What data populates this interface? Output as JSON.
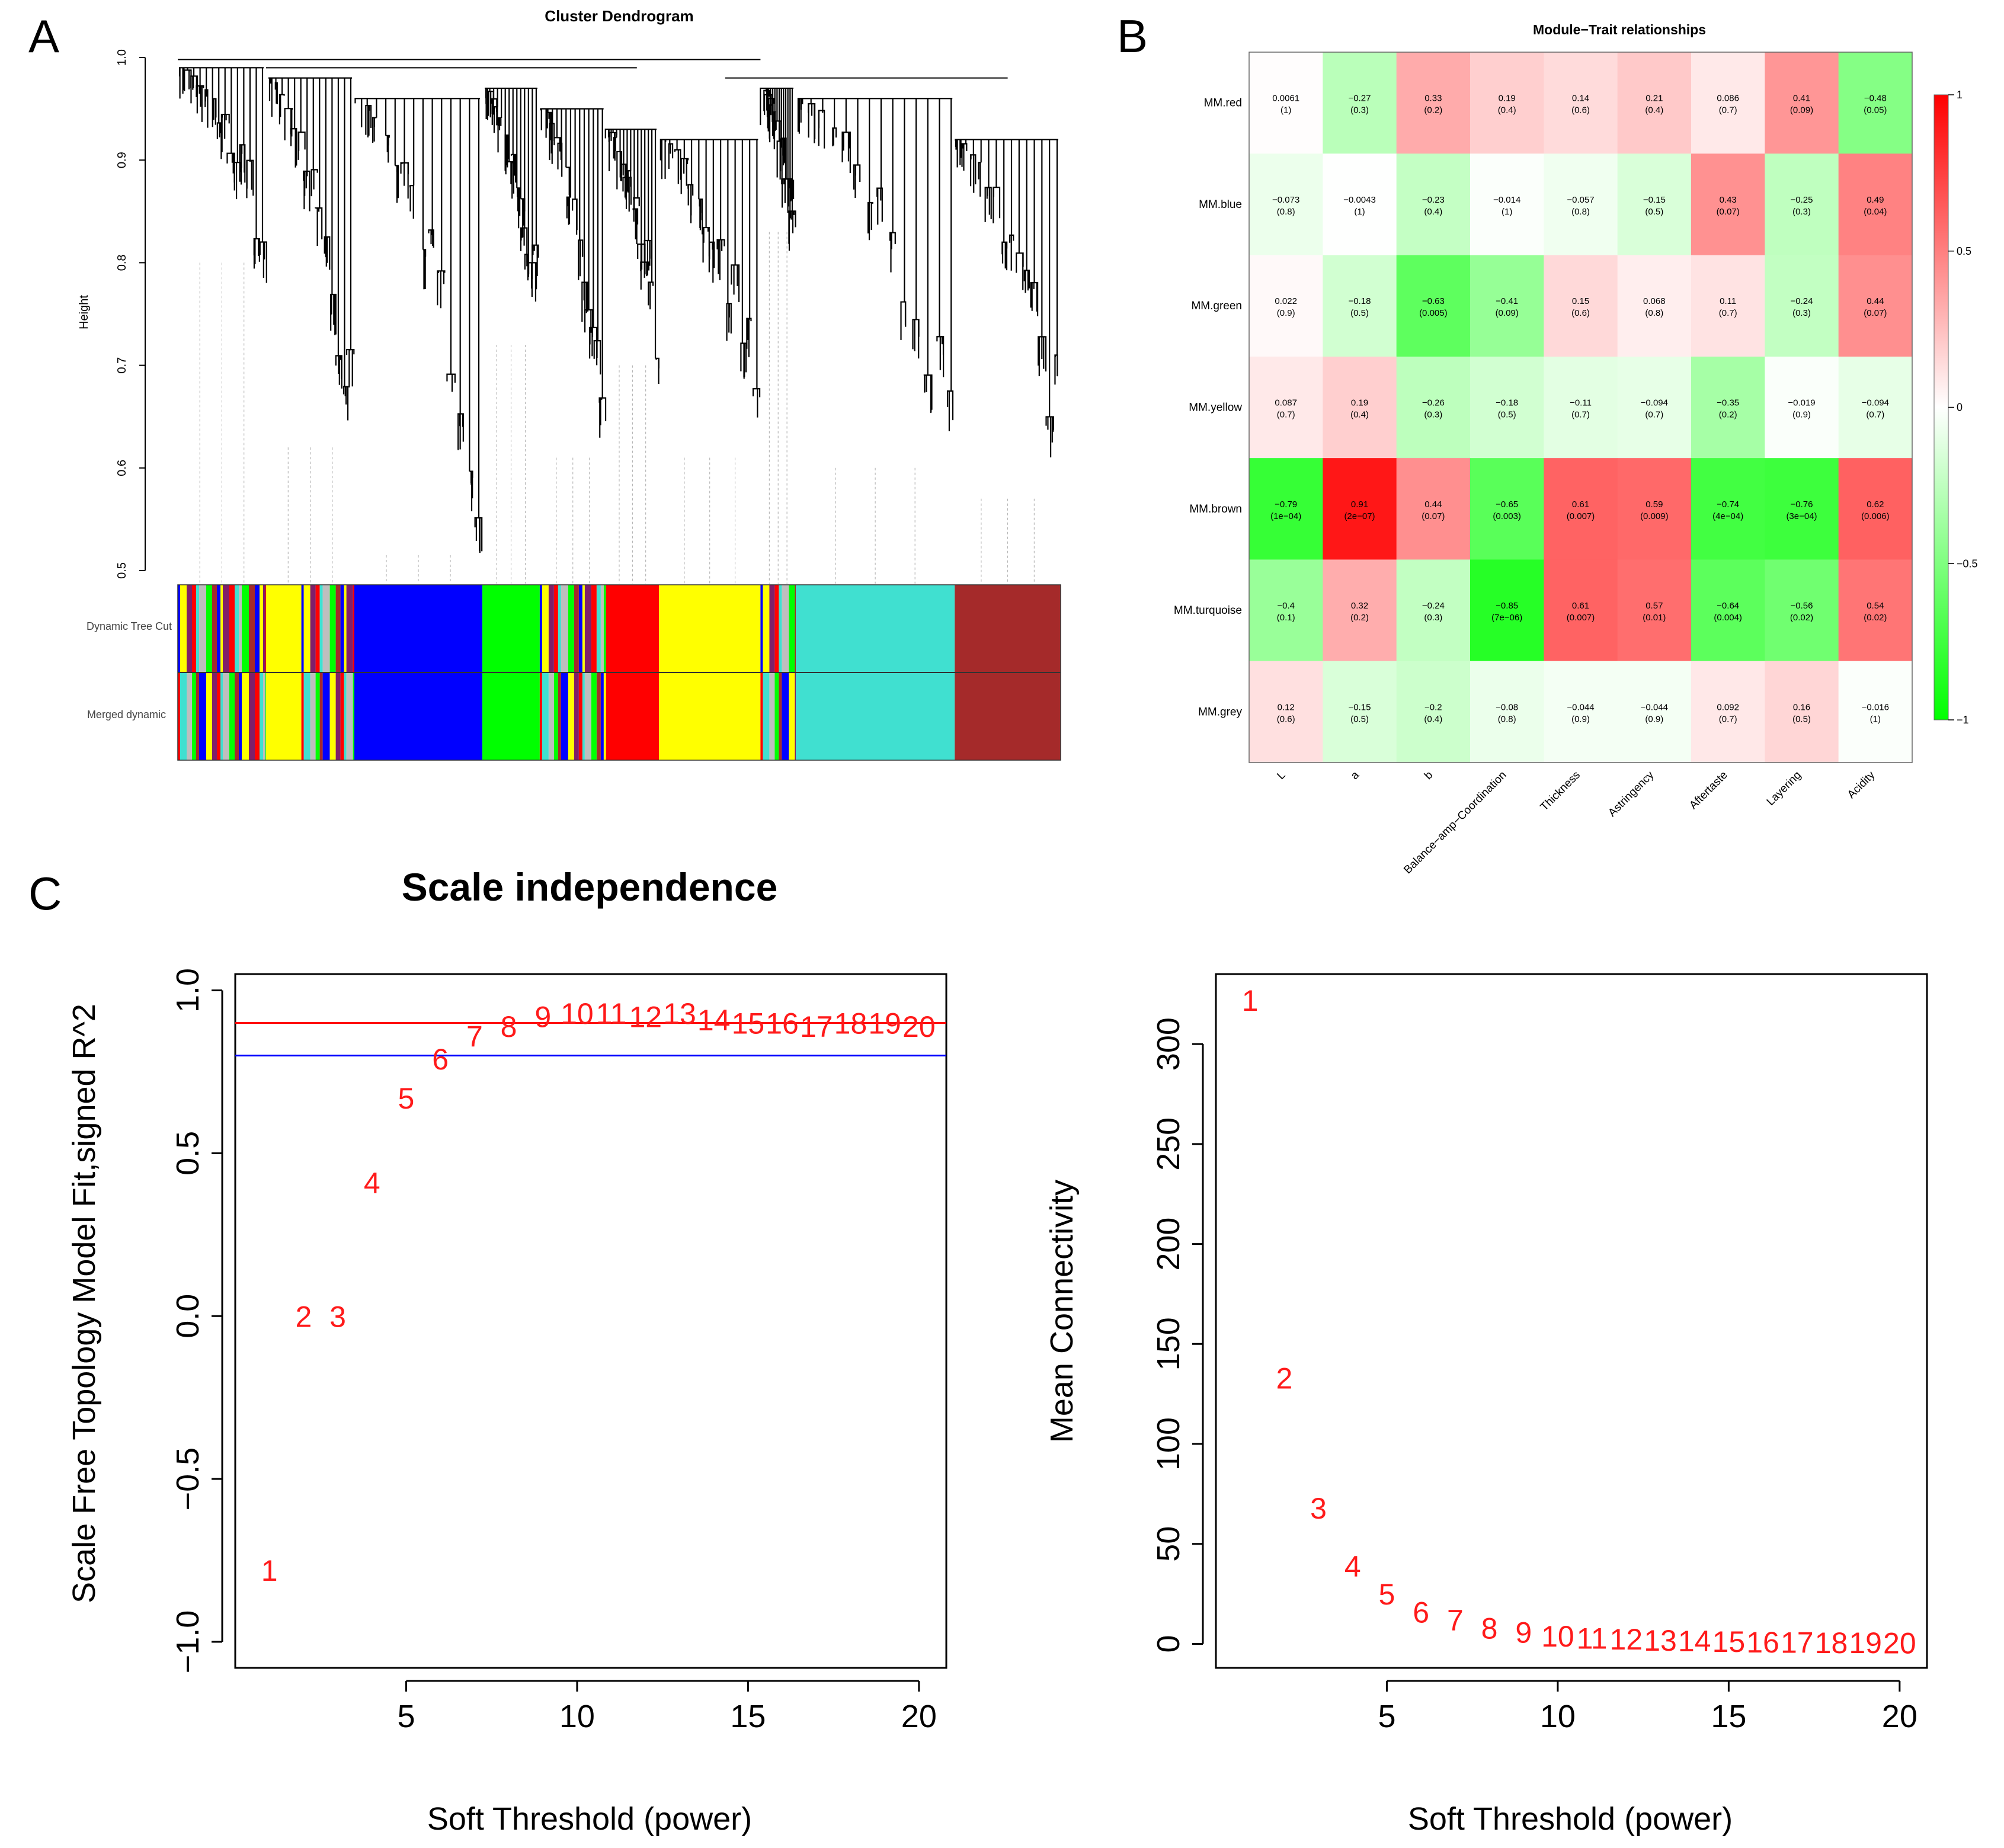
{
  "panels": {
    "a": "A",
    "b": "B",
    "c": "C"
  },
  "colors": {
    "red_points": "#ff1a1a",
    "hline_red": "#ff0000",
    "hline_blue": "#0000ff",
    "module_blue": "#0000ff",
    "module_green": "#00ff00",
    "module_red": "#ff0000",
    "module_yellow": "#ffff00",
    "module_turquoise": "#40e0d0",
    "module_brown": "#a52a2a",
    "module_grey": "#bebebe"
  },
  "chart_data": [
    {
      "id": "dendrogram",
      "type": "dendrogram",
      "title": "Cluster Dendrogram",
      "ylabel": "Height",
      "yticks": [
        "0.5",
        "0.6",
        "0.7",
        "0.8",
        "0.9",
        "1.0"
      ],
      "ylim": [
        0.5,
        1.0
      ],
      "row_labels": [
        "Dynamic Tree Cut",
        "Merged dynamic"
      ],
      "module_strip": [
        {
          "color": "mixed",
          "start": 0.0,
          "end": 0.1
        },
        {
          "color": "yellow",
          "start": 0.1,
          "end": 0.14
        },
        {
          "color": "mixed",
          "start": 0.14,
          "end": 0.2
        },
        {
          "color": "blue",
          "start": 0.2,
          "end": 0.345
        },
        {
          "color": "green",
          "start": 0.345,
          "end": 0.41
        },
        {
          "color": "mixed",
          "start": 0.41,
          "end": 0.485
        },
        {
          "color": "red",
          "start": 0.485,
          "end": 0.545
        },
        {
          "color": "yellow",
          "start": 0.545,
          "end": 0.66
        },
        {
          "color": "mixed",
          "start": 0.66,
          "end": 0.7
        },
        {
          "color": "turquoise",
          "start": 0.7,
          "end": 0.88
        },
        {
          "color": "brown",
          "start": 0.88,
          "end": 1.0
        }
      ]
    },
    {
      "id": "heatmap",
      "type": "heatmap",
      "title": "Module−Trait relationships",
      "rows": [
        "MM.red",
        "MM.blue",
        "MM.green",
        "MM.yellow",
        "MM.brown",
        "MM.turquoise",
        "MM.grey"
      ],
      "cols": [
        "L",
        "a",
        "b",
        "Balance−amp−Coordination",
        "Thickness",
        "Astringency",
        "Aftertaste",
        "Layering",
        "Acidity"
      ],
      "values": [
        [
          0.0061,
          -0.27,
          0.33,
          0.19,
          0.14,
          0.21,
          0.086,
          0.41,
          -0.48
        ],
        [
          -0.073,
          -0.0043,
          -0.23,
          -0.014,
          -0.057,
          -0.15,
          0.43,
          -0.25,
          0.49
        ],
        [
          0.022,
          -0.18,
          -0.63,
          -0.41,
          0.15,
          0.068,
          0.11,
          -0.24,
          0.44
        ],
        [
          0.087,
          0.19,
          -0.26,
          -0.18,
          -0.11,
          -0.094,
          -0.35,
          -0.019,
          -0.094
        ],
        [
          -0.79,
          0.91,
          0.44,
          -0.65,
          0.61,
          0.59,
          -0.74,
          -0.76,
          0.62
        ],
        [
          -0.4,
          0.32,
          -0.24,
          -0.85,
          0.61,
          0.57,
          -0.64,
          -0.56,
          0.54
        ],
        [
          0.12,
          -0.15,
          -0.2,
          -0.08,
          -0.044,
          -0.044,
          0.092,
          0.16,
          -0.016
        ]
      ],
      "labels": [
        [
          "0.0061",
          "−0.27",
          "0.33",
          "0.19",
          "0.14",
          "0.21",
          "0.086",
          "0.41",
          "−0.48"
        ],
        [
          "−0.073",
          "−0.0043",
          "−0.23",
          "−0.014",
          "−0.057",
          "−0.15",
          "0.43",
          "−0.25",
          "0.49"
        ],
        [
          "0.022",
          "−0.18",
          "−0.63",
          "−0.41",
          "0.15",
          "0.068",
          "0.11",
          "−0.24",
          "0.44"
        ],
        [
          "0.087",
          "0.19",
          "−0.26",
          "−0.18",
          "−0.11",
          "−0.094",
          "−0.35",
          "−0.019",
          "−0.094"
        ],
        [
          "−0.79",
          "0.91",
          "0.44",
          "−0.65",
          "0.61",
          "0.59",
          "−0.74",
          "−0.76",
          "0.62"
        ],
        [
          "−0.4",
          "0.32",
          "−0.24",
          "−0.85",
          "0.61",
          "0.57",
          "−0.64",
          "−0.56",
          "0.54"
        ],
        [
          "0.12",
          "−0.15",
          "−0.2",
          "−0.08",
          "−0.044",
          "−0.044",
          "0.092",
          "0.16",
          "−0.016"
        ]
      ],
      "pvalues": [
        [
          "(1)",
          "(0.3)",
          "(0.2)",
          "(0.4)",
          "(0.6)",
          "(0.4)",
          "(0.7)",
          "(0.09)",
          "(0.05)"
        ],
        [
          "(0.8)",
          "(1)",
          "(0.4)",
          "(1)",
          "(0.8)",
          "(0.5)",
          "(0.07)",
          "(0.3)",
          "(0.04)"
        ],
        [
          "(0.9)",
          "(0.5)",
          "(0.005)",
          "(0.09)",
          "(0.6)",
          "(0.8)",
          "(0.7)",
          "(0.3)",
          "(0.07)"
        ],
        [
          "(0.7)",
          "(0.4)",
          "(0.3)",
          "(0.5)",
          "(0.7)",
          "(0.7)",
          "(0.2)",
          "(0.9)",
          "(0.7)"
        ],
        [
          "(1e−04)",
          "(2e−07)",
          "(0.07)",
          "(0.003)",
          "(0.007)",
          "(0.009)",
          "(4e−04)",
          "(3e−04)",
          "(0.006)"
        ],
        [
          "(0.1)",
          "(0.2)",
          "(0.3)",
          "(7e−06)",
          "(0.007)",
          "(0.01)",
          "(0.004)",
          "(0.02)",
          "(0.02)"
        ],
        [
          "(0.6)",
          "(0.5)",
          "(0.4)",
          "(0.8)",
          "(0.9)",
          "(0.9)",
          "(0.7)",
          "(0.5)",
          "(1)"
        ]
      ],
      "colorbar": {
        "range": [
          -1,
          1
        ],
        "ticks": [
          "1",
          "0.5",
          "0",
          "−0.5",
          "−1"
        ]
      }
    },
    {
      "id": "scale_fit",
      "type": "scatter",
      "title": "Scale independence",
      "xlabel": "Soft Threshold (power)",
      "ylabel": "Scale Free Topology Model Fit,signed R^2",
      "xlim": [
        0,
        20.8
      ],
      "ylim": [
        -1.08,
        1.05
      ],
      "xticks": [
        "5",
        "10",
        "15",
        "20"
      ],
      "yticks": [
        "−1.0",
        "−0.5",
        "0.0",
        "0.5",
        "1.0"
      ],
      "x": [
        1,
        2,
        3,
        4,
        5,
        6,
        7,
        8,
        9,
        10,
        11,
        12,
        13,
        14,
        15,
        16,
        17,
        18,
        19,
        20
      ],
      "y": [
        -0.78,
        0.0,
        0.0,
        0.41,
        0.67,
        0.79,
        0.86,
        0.89,
        0.92,
        0.93,
        0.93,
        0.92,
        0.93,
        0.91,
        0.9,
        0.9,
        0.89,
        0.9,
        0.9,
        0.89
      ],
      "point_labels": [
        "1",
        "2",
        "3",
        "4",
        "5",
        "6",
        "7",
        "8",
        "9",
        "10",
        "11",
        "12",
        "13",
        "14",
        "15",
        "16",
        "17",
        "18",
        "19",
        "20"
      ],
      "hlines": [
        0.9,
        0.8
      ]
    },
    {
      "id": "connectivity",
      "type": "scatter",
      "xlabel": "Soft Threshold (power)",
      "ylabel": "Mean Connectivity",
      "xlim": [
        0,
        20.8
      ],
      "ylim": [
        -12,
        335
      ],
      "xticks": [
        "5",
        "10",
        "15",
        "20"
      ],
      "yticks": [
        "0",
        "50",
        "100",
        "150",
        "200",
        "250",
        "300"
      ],
      "x": [
        1,
        2,
        3,
        4,
        5,
        6,
        7,
        8,
        9,
        10,
        11,
        12,
        13,
        14,
        15,
        16,
        17,
        18,
        19,
        20
      ],
      "y": [
        322,
        133,
        68,
        39,
        25,
        16,
        12,
        8,
        6,
        4,
        3,
        2.5,
        2,
        1.6,
        1.3,
        1.1,
        0.9,
        0.8,
        0.7,
        0.6
      ],
      "point_labels": [
        "1",
        "2",
        "3",
        "4",
        "5",
        "6",
        "7",
        "8",
        "9",
        "10",
        "11",
        "12",
        "13",
        "14",
        "15",
        "16",
        "17",
        "18",
        "19",
        "20"
      ]
    }
  ]
}
